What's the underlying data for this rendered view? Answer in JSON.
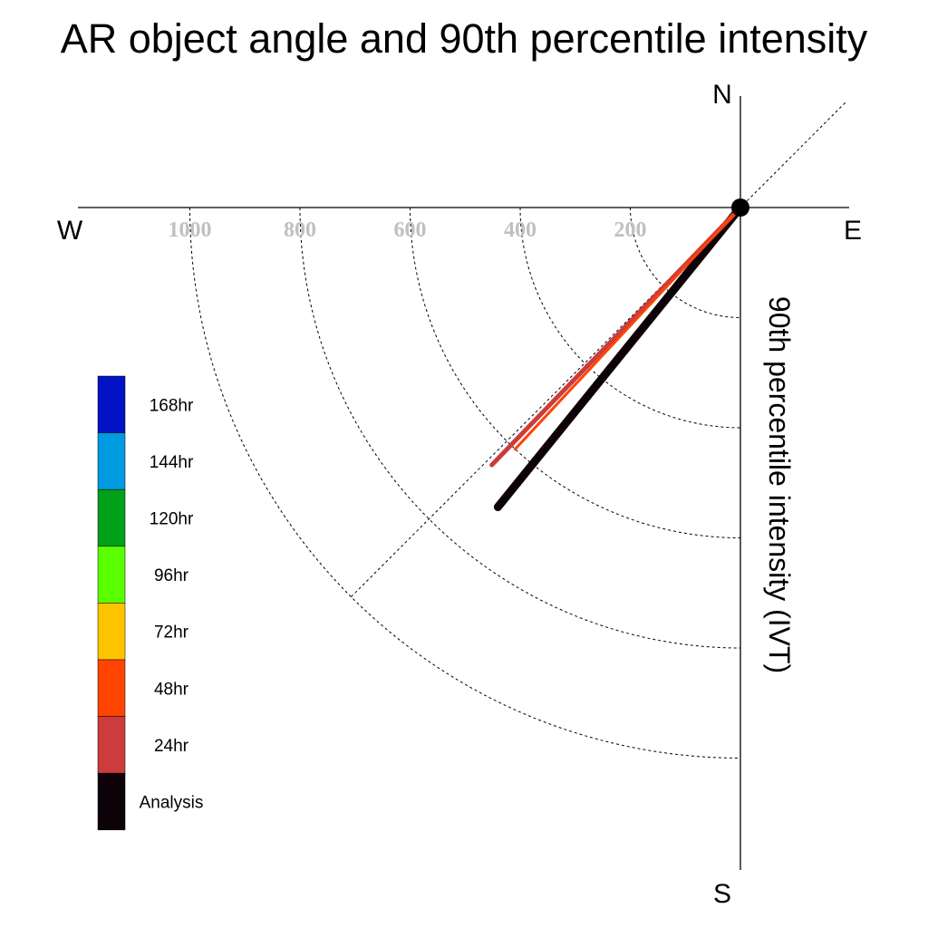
{
  "chart_data": {
    "type": "polar-vector",
    "title": "AR object angle and 90th percentile intensity",
    "radial_label": "90th percentile intensity (IVT)",
    "compass": {
      "n": "N",
      "s": "S",
      "e": "E",
      "w": "W"
    },
    "radial_ticks": [
      200,
      400,
      600,
      800,
      1000
    ],
    "reference_angle_deg": 225,
    "series": [
      {
        "name": "Analysis",
        "color": "#0d0208",
        "angle_deg": 219,
        "magnitude": 700
      },
      {
        "name": "24hr",
        "color": "#cc3c3c",
        "angle_deg": 224,
        "magnitude": 650
      },
      {
        "name": "48hr",
        "color": "#ff4400",
        "angle_deg": 223,
        "magnitude": 600
      }
    ],
    "legend": [
      {
        "label": "168hr",
        "color": "#0012c4"
      },
      {
        "label": "144hr",
        "color": "#009ae0"
      },
      {
        "label": "120hr",
        "color": "#00a018"
      },
      {
        "label": "96hr",
        "color": "#5aff00"
      },
      {
        "label": "72hr",
        "color": "#ffc400"
      },
      {
        "label": "48hr",
        "color": "#ff4400"
      },
      {
        "label": "24hr",
        "color": "#cc3c3c"
      },
      {
        "label": "Analysis",
        "color": "#0d0208"
      }
    ]
  }
}
